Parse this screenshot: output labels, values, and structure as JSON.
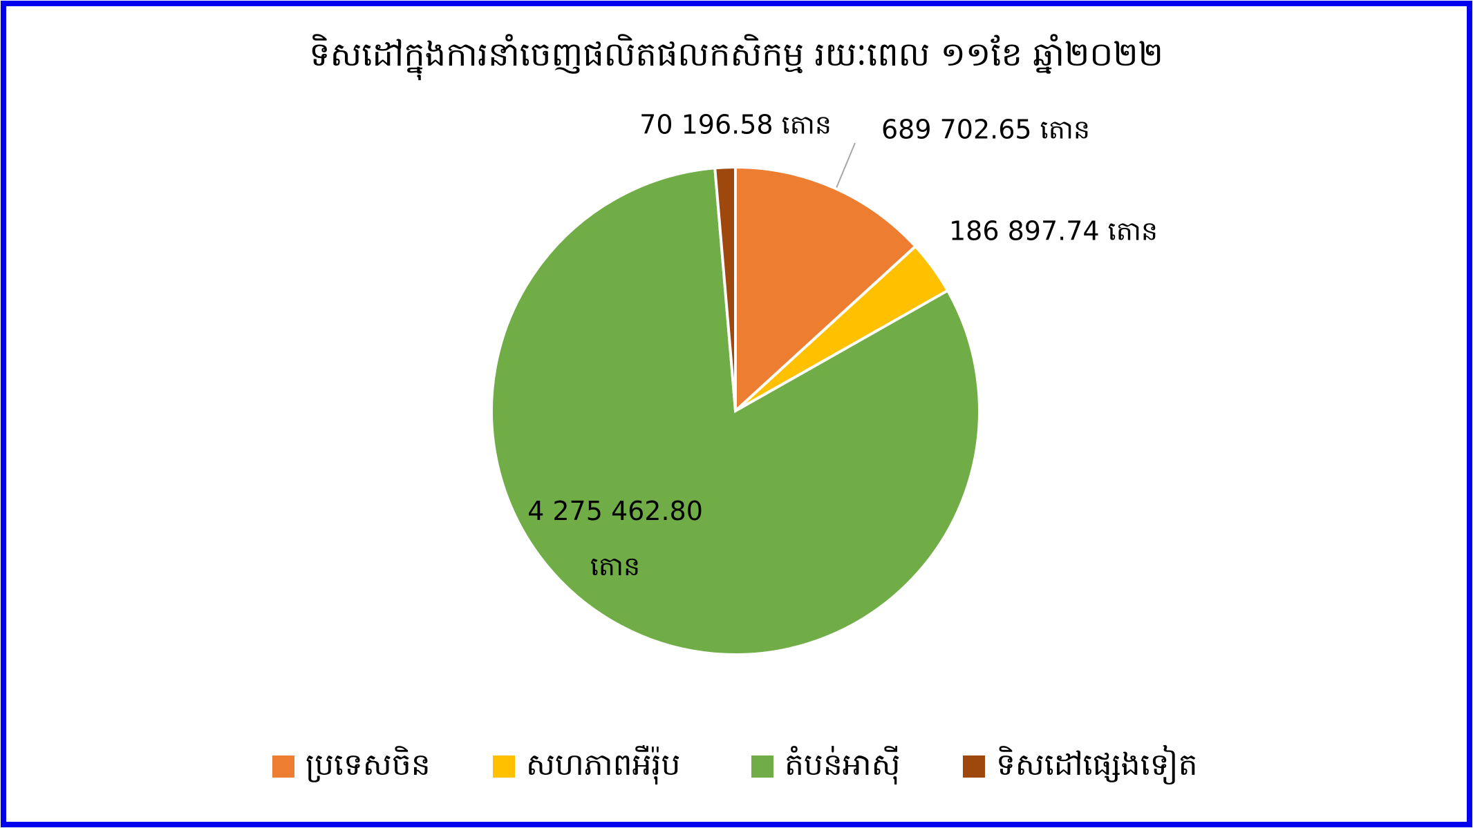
{
  "chart_data": {
    "type": "pie",
    "title": "ទិសដៅក្នុងការនាំចេញផលិតផលកសិកម្ម រយៈពេល ១១ខែ ឆ្នាំ២០២២",
    "categories": [
      "ប្រទេសចិន",
      "សហភាពអឺរ៉ុប",
      "តំបន់អាស៊ី",
      "ទិសដៅផ្សេងទៀត"
    ],
    "values": [
      689702.65,
      186897.74,
      4275462.8,
      70196.58
    ],
    "value_labels": [
      "689 702.65 តោន",
      "186 897.74 តោន",
      "4 275 462.80 តោន",
      "70 196.58 តោន"
    ],
    "colors": [
      "#ED7D31",
      "#FFC000",
      "#70AD47",
      "#9E480E"
    ],
    "legend": "bottom"
  }
}
